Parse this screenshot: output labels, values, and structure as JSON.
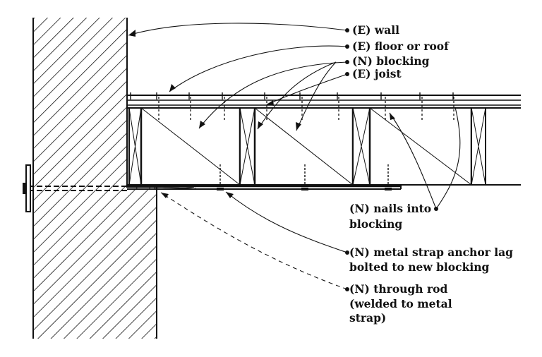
{
  "labels": {
    "wall": "(E)  wall",
    "floor_or_roof": "(E) floor or roof",
    "blocking": "(N) blocking",
    "joist": "(E) joist",
    "nails_line1": "(N) nails into",
    "nails_line2": "blocking",
    "strap_line1": "(N) metal strap anchor lag",
    "strap_line2": "bolted to new blocking",
    "rod_line1": "(N)  through rod",
    "rod_line2": "(welded to metal",
    "rod_line3": "strap)"
  },
  "colors": {
    "ink": "#111111",
    "background": "#ffffff"
  }
}
